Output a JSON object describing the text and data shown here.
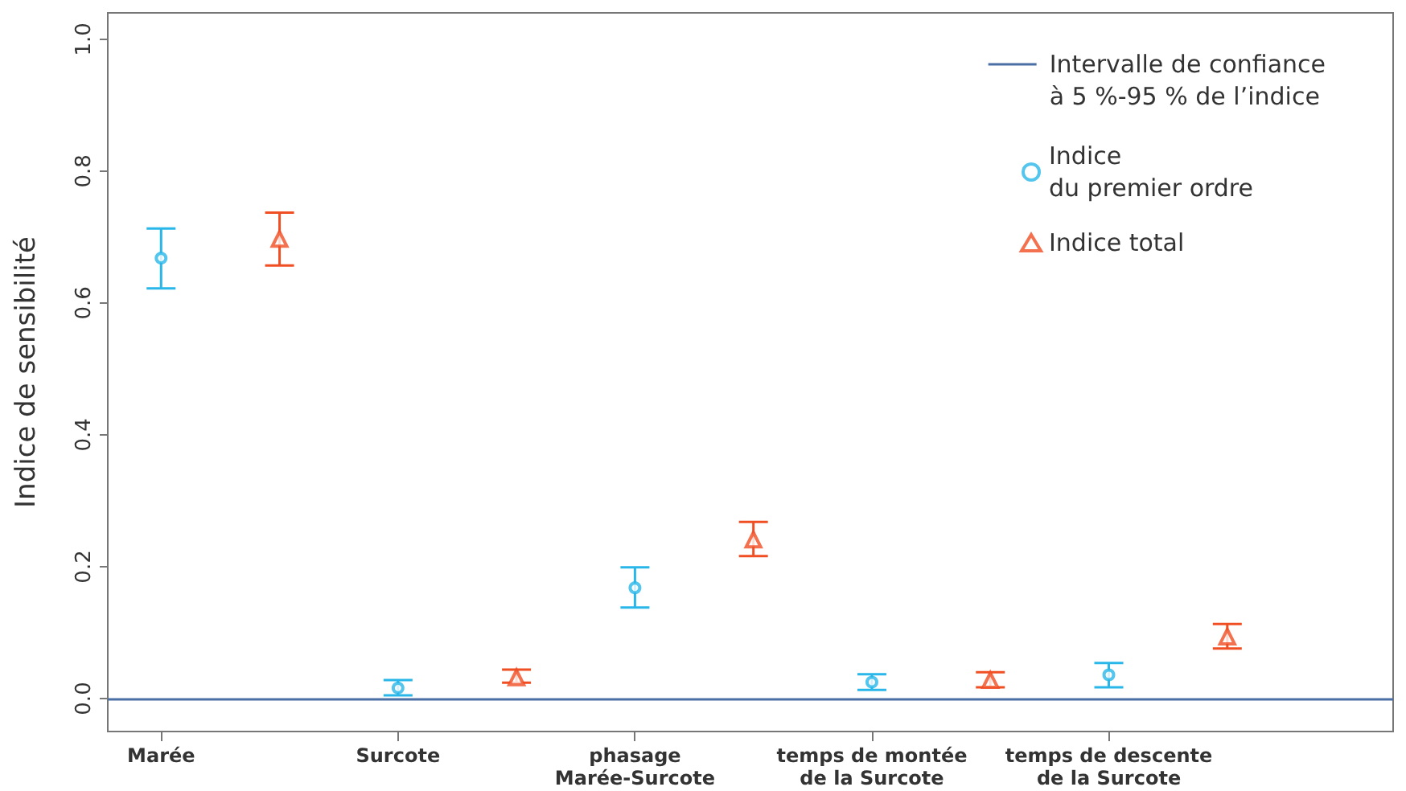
{
  "chart_data": {
    "type": "scatter",
    "ylabel": "Indice de sensibilité",
    "categories": [
      "Marée",
      null,
      "Surcote",
      null,
      "phasage\nMarée-Surcote",
      null,
      "temps de montée\nde la Surcote",
      null,
      "temps de descente\nde la Surcote",
      null
    ],
    "series": [
      {
        "name": "Indice\ndu premier ordre",
        "color": "#29b6e8",
        "marker": "circle",
        "values": [
          0.668,
          null,
          0.016,
          null,
          0.168,
          null,
          0.025,
          null,
          0.036,
          null
        ],
        "errors": [
          [
            0.622,
            0.713
          ],
          null,
          [
            0.005,
            0.028
          ],
          null,
          [
            0.138,
            0.199
          ],
          null,
          [
            0.013,
            0.037
          ],
          null,
          [
            0.017,
            0.054
          ],
          null
        ]
      },
      {
        "name": "Indice total",
        "color": "#f04e23",
        "marker": "triangle",
        "values": [
          null,
          0.697,
          null,
          0.032,
          null,
          0.241,
          null,
          0.028,
          null,
          0.094
        ],
        "errors": [
          null,
          [
            0.657,
            0.737
          ],
          null,
          [
            0.024,
            0.044
          ],
          null,
          [
            0.216,
            0.268
          ],
          null,
          [
            0.017,
            0.04
          ],
          null,
          [
            0.076,
            0.113
          ]
        ]
      }
    ],
    "ylim": [
      -0.05,
      1.04
    ],
    "yticks": [
      {
        "value": 0,
        "label": "0.0"
      },
      {
        "value": 0.2,
        "label": "0.2"
      },
      {
        "value": 0.4,
        "label": "0.4"
      },
      {
        "value": 0.6,
        "label": "0.6"
      },
      {
        "value": 0.8,
        "label": "0.8"
      },
      {
        "value": 1,
        "label": "1.0"
      }
    ],
    "ref_lines": [
      {
        "axis": "y",
        "value": 0,
        "color": "#4a6fa5"
      }
    ],
    "annotations": [
      "Intervalle de confiance\nà 5 %-95 % de l’indice"
    ],
    "legend": "top right",
    "grid": false
  }
}
